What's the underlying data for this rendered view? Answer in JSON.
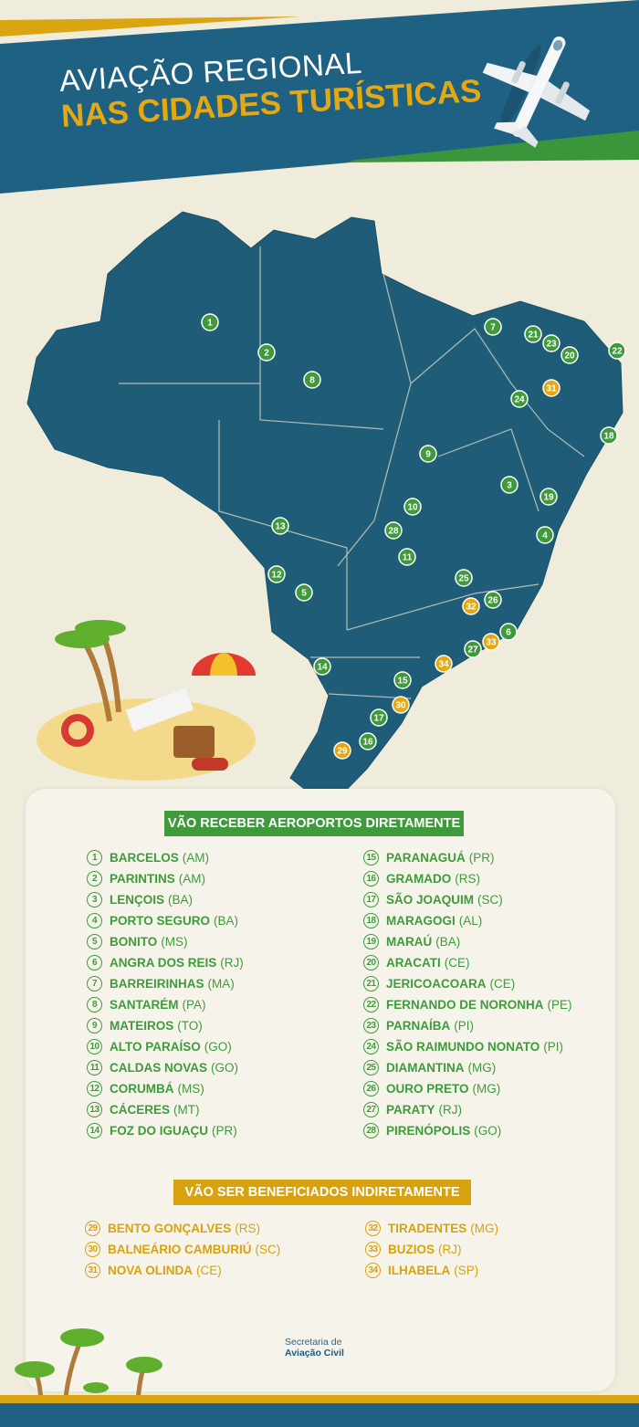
{
  "header": {
    "title_line1": "AVIAÇÃO REGIONAL",
    "title_line2": "NAS CIDADES TURÍSTICAS",
    "icon": "airplane-icon"
  },
  "colors": {
    "banner_blue": "#1f6182",
    "accent_yellow": "#e3a812",
    "accent_green": "#3f9a3c",
    "background": "#efecdc"
  },
  "map": {
    "markers": [
      {
        "n": "1",
        "type": "direct"
      },
      {
        "n": "2",
        "type": "direct"
      },
      {
        "n": "3",
        "type": "direct"
      },
      {
        "n": "4",
        "type": "direct"
      },
      {
        "n": "5",
        "type": "direct"
      },
      {
        "n": "6",
        "type": "direct"
      },
      {
        "n": "7",
        "type": "direct"
      },
      {
        "n": "8",
        "type": "direct"
      },
      {
        "n": "9",
        "type": "direct"
      },
      {
        "n": "10",
        "type": "direct"
      },
      {
        "n": "11",
        "type": "direct"
      },
      {
        "n": "12",
        "type": "direct"
      },
      {
        "n": "13",
        "type": "direct"
      },
      {
        "n": "14",
        "type": "direct"
      },
      {
        "n": "15",
        "type": "direct"
      },
      {
        "n": "16",
        "type": "direct"
      },
      {
        "n": "17",
        "type": "direct"
      },
      {
        "n": "18",
        "type": "direct"
      },
      {
        "n": "19",
        "type": "direct"
      },
      {
        "n": "20",
        "type": "direct"
      },
      {
        "n": "21",
        "type": "direct"
      },
      {
        "n": "22",
        "type": "direct"
      },
      {
        "n": "23",
        "type": "direct"
      },
      {
        "n": "24",
        "type": "direct"
      },
      {
        "n": "25",
        "type": "direct"
      },
      {
        "n": "26",
        "type": "direct"
      },
      {
        "n": "27",
        "type": "direct"
      },
      {
        "n": "28",
        "type": "direct"
      },
      {
        "n": "29",
        "type": "indirect"
      },
      {
        "n": "30",
        "type": "indirect"
      },
      {
        "n": "31",
        "type": "indirect"
      },
      {
        "n": "32",
        "type": "indirect"
      },
      {
        "n": "33",
        "type": "indirect"
      },
      {
        "n": "34",
        "type": "indirect"
      }
    ]
  },
  "direct": {
    "title": "VÃO RECEBER AEROPORTOS DIRETAMENTE",
    "items": [
      {
        "n": "1",
        "city": "BARCELOS",
        "uf": "(AM)"
      },
      {
        "n": "2",
        "city": "PARINTINS",
        "uf": "(AM)"
      },
      {
        "n": "3",
        "city": "LENÇOIS",
        "uf": "(BA)"
      },
      {
        "n": "4",
        "city": "PORTO SEGURO",
        "uf": "(BA)"
      },
      {
        "n": "5",
        "city": "BONITO",
        "uf": "(MS)"
      },
      {
        "n": "6",
        "city": "ANGRA DOS REIS",
        "uf": "(RJ)"
      },
      {
        "n": "7",
        "city": "BARREIRINHAS",
        "uf": "(MA)"
      },
      {
        "n": "8",
        "city": "SANTARÉM",
        "uf": "(PA)"
      },
      {
        "n": "9",
        "city": "MATEIROS",
        "uf": "(TO)"
      },
      {
        "n": "10",
        "city": "ALTO PARAÍSO",
        "uf": "(GO)"
      },
      {
        "n": "11",
        "city": "CALDAS NOVAS",
        "uf": "(GO)"
      },
      {
        "n": "12",
        "city": "CORUMBÁ",
        "uf": "(MS)"
      },
      {
        "n": "13",
        "city": "CÁCERES",
        "uf": "(MT)"
      },
      {
        "n": "14",
        "city": "FOZ DO IGUAÇU",
        "uf": "(PR)"
      },
      {
        "n": "15",
        "city": "PARANAGUÁ",
        "uf": "(PR)"
      },
      {
        "n": "16",
        "city": "GRAMADO",
        "uf": "(RS)"
      },
      {
        "n": "17",
        "city": "SÃO JOAQUIM",
        "uf": "(SC)"
      },
      {
        "n": "18",
        "city": "MARAGOGI",
        "uf": "(AL)"
      },
      {
        "n": "19",
        "city": "MARAÚ",
        "uf": "(BA)"
      },
      {
        "n": "20",
        "city": "ARACATI",
        "uf": "(CE)"
      },
      {
        "n": "21",
        "city": "JERICOACOARA",
        "uf": "(CE)"
      },
      {
        "n": "22",
        "city": "FERNANDO DE NORONHA",
        "uf": "(PE)"
      },
      {
        "n": "23",
        "city": "PARNAÍBA",
        "uf": "(PI)"
      },
      {
        "n": "24",
        "city": "SÃO RAIMUNDO NONATO",
        "uf": "(PI)"
      },
      {
        "n": "25",
        "city": "DIAMANTINA",
        "uf": "(MG)"
      },
      {
        "n": "26",
        "city": "OURO PRETO",
        "uf": "(MG)"
      },
      {
        "n": "27",
        "city": "PARATY",
        "uf": "(RJ)"
      },
      {
        "n": "28",
        "city": "PIRENÓPOLIS",
        "uf": "(GO)"
      }
    ]
  },
  "indirect": {
    "title": "VÃO SER BENEFICIADOS INDIRETAMENTE",
    "items": [
      {
        "n": "29",
        "city": "BENTO GONÇALVES",
        "uf": "(RS)"
      },
      {
        "n": "30",
        "city": "BALNEÁRIO CAMBURIÚ",
        "uf": "(SC)"
      },
      {
        "n": "31",
        "city": "NOVA OLINDA",
        "uf": "(CE)"
      },
      {
        "n": "32",
        "city": "TIRADENTES",
        "uf": "(MG)"
      },
      {
        "n": "33",
        "city": "BUZIOS",
        "uf": "(RJ)"
      },
      {
        "n": "34",
        "city": "ILHABELA",
        "uf": "(SP)"
      }
    ]
  },
  "footer": {
    "logo_line1": "Secretaria de",
    "logo_line2": "Aviação Civil"
  }
}
